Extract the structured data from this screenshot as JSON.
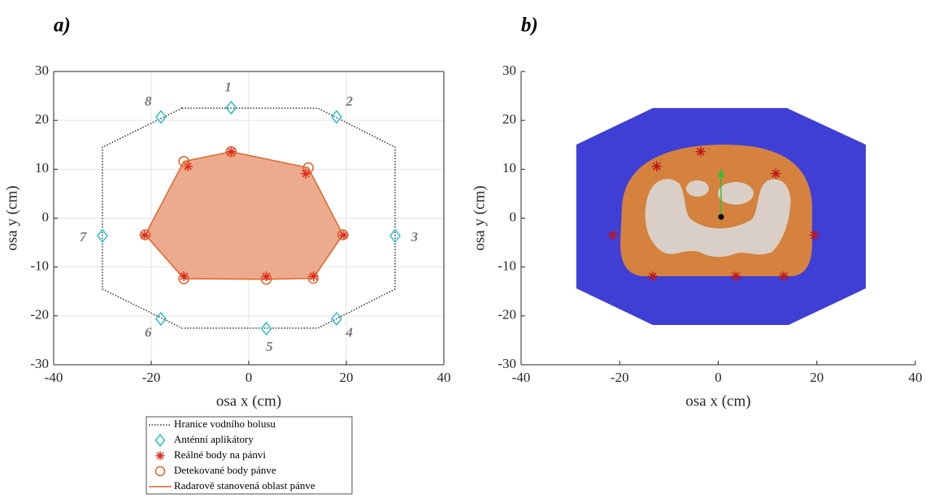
{
  "chart_data": [
    {
      "type": "scatter",
      "title": "a)",
      "xlabel": "osa x (cm)",
      "ylabel": "osa y (cm)",
      "xlim": [
        -40,
        40
      ],
      "ylim": [
        -30,
        30
      ],
      "xticks": [
        -40,
        -20,
        0,
        20,
        40
      ],
      "yticks": [
        -30,
        -20,
        -10,
        0,
        10,
        20,
        30
      ],
      "grid": true,
      "box": true,
      "legend": "below",
      "series": [
        {
          "name": "Hranice vodního bolusu",
          "marker": "dotted-line",
          "color": "#333333",
          "x": [
            -13.7,
            14.2,
            30,
            30,
            14.2,
            -13.7,
            -30,
            -30
          ],
          "y": [
            22.5,
            22.5,
            14.5,
            -14.5,
            -22.5,
            -22.5,
            -14.5,
            14.5
          ]
        },
        {
          "name": "Anténní aplikátory",
          "marker": "diamond",
          "color": "#2bbfc4",
          "x": [
            -3.6,
            18,
            30,
            18,
            3.6,
            -18,
            -30,
            -18
          ],
          "y": [
            22.6,
            20.7,
            -3.6,
            -20.6,
            -22.6,
            -20.6,
            -3.6,
            20.7
          ],
          "labels": [
            "1",
            "2",
            "3",
            "4",
            "5",
            "6",
            "7",
            "8"
          ]
        },
        {
          "name": "Reálné body na pánvi",
          "marker": "star",
          "color": "#e5231b",
          "x": [
            -3.6,
            11.7,
            19.5,
            13.3,
            3.6,
            -13.3,
            -21.4,
            -12.5
          ],
          "y": [
            13.6,
            9.1,
            -3.5,
            -11.9,
            -11.9,
            -11.9,
            -3.5,
            10.6
          ]
        },
        {
          "name": "Detekované body pánve",
          "marker": "circle",
          "color": "#e0642a",
          "x": [
            -3.6,
            12.2,
            19.3,
            13.2,
            3.6,
            -13.3,
            -21.2,
            -13.3
          ],
          "y": [
            13.6,
            10.3,
            -3.4,
            -12.3,
            -12.5,
            -12.4,
            -3.4,
            11.6
          ]
        },
        {
          "name": "Radarově stanovená oblast pánve",
          "marker": "area",
          "color": "#e0642a",
          "fill": "#eaa283",
          "x": [
            -3.6,
            12.2,
            19.3,
            13.2,
            3.6,
            -13.3,
            -21.2,
            -13.3
          ],
          "y": [
            13.6,
            10.3,
            -3.4,
            -12.3,
            -12.5,
            -12.4,
            -3.4,
            11.6
          ]
        }
      ]
    },
    {
      "type": "scatter",
      "title": "b)",
      "xlabel": "osa x (cm)",
      "ylabel": "osa y (cm)",
      "xlim": [
        -40,
        40
      ],
      "ylim": [
        -30,
        30
      ],
      "xticks": [
        -40,
        -20,
        0,
        20,
        40
      ],
      "yticks": [
        -30,
        -20,
        -10,
        0,
        10,
        20,
        30
      ],
      "grid": false,
      "box": false,
      "series": [
        {
          "marker": "star",
          "color": "#c0141b",
          "x": [
            -3.6,
            11.7,
            19.5,
            13.3,
            3.6,
            -13.3,
            -21.4,
            -12.5
          ],
          "y": [
            13.6,
            9.1,
            -3.5,
            -11.9,
            -11.9,
            -11.9,
            -3.5,
            10.6
          ]
        }
      ]
    }
  ]
}
